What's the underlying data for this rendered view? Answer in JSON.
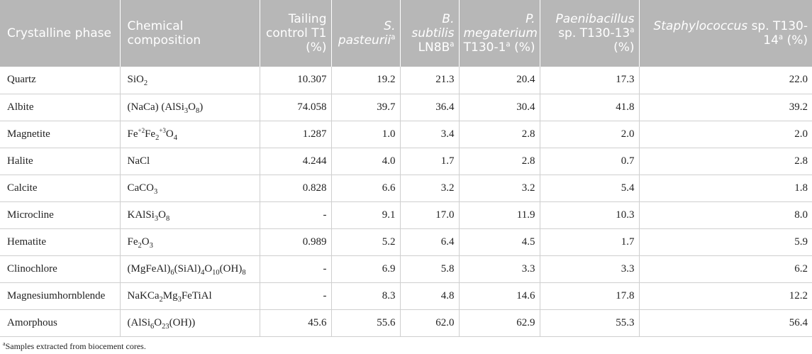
{
  "headers": {
    "h1": "Crystalline phase",
    "h2": "Chemical composition",
    "h3": "Tailing control T1 (%)",
    "h4_italic": "S. pasteurii",
    "h5_italic": "B. subtilis",
    "h5_rest": "LN8B",
    "h6_italic": "P. megaterium",
    "h6_rest": "T130-1",
    "h6_unit": " (%)",
    "h7_italic": "Paenibacillus",
    "h7_rest": "sp. T130-13",
    "h7_unit": " (%)",
    "h8_italic": "Staphylococcus",
    "h8_rest": "sp. T130-14",
    "h8_unit": " (%)",
    "sup_a": "a"
  },
  "rows": [
    {
      "phase": "Quartz",
      "formula": [
        [
          "SiO",
          ""
        ],
        [
          "2",
          "sub"
        ]
      ],
      "v": [
        "10.307",
        "19.2",
        "21.3",
        "20.4",
        "17.3",
        "22.0"
      ]
    },
    {
      "phase": "Albite",
      "formula": [
        [
          "(NaCa) (AlSi",
          ""
        ],
        [
          "3",
          "sub"
        ],
        [
          "O",
          ""
        ],
        [
          "8",
          "sub"
        ],
        [
          ")",
          ""
        ]
      ],
      "v": [
        "74.058",
        "39.7",
        "36.4",
        "30.4",
        "41.8",
        "39.2"
      ]
    },
    {
      "phase": "Magnetite",
      "formula": [
        [
          "Fe",
          ""
        ],
        [
          "+2",
          "sup"
        ],
        [
          "Fe",
          ""
        ],
        [
          "2",
          "sub"
        ],
        [
          "+3",
          "sup"
        ],
        [
          "O",
          ""
        ],
        [
          "4",
          "sub"
        ]
      ],
      "v": [
        "1.287",
        "1.0",
        "3.4",
        "2.8",
        "2.0",
        "2.0"
      ]
    },
    {
      "phase": "Halite",
      "formula": [
        [
          "NaCl",
          ""
        ]
      ],
      "v": [
        "4.244",
        "4.0",
        "1.7",
        "2.8",
        "0.7",
        "2.8"
      ]
    },
    {
      "phase": "Calcite",
      "formula": [
        [
          "CaCO",
          ""
        ],
        [
          "3",
          "sub"
        ]
      ],
      "v": [
        "0.828",
        "6.6",
        "3.2",
        "3.2",
        "5.4",
        "1.8"
      ]
    },
    {
      "phase": "Microcline",
      "formula": [
        [
          "KAlSi",
          ""
        ],
        [
          "3",
          "sub"
        ],
        [
          "O",
          ""
        ],
        [
          "8",
          "sub"
        ]
      ],
      "v": [
        "-",
        "9.1",
        "17.0",
        "11.9",
        "10.3",
        "8.0"
      ]
    },
    {
      "phase": "Hematite",
      "formula": [
        [
          "Fe",
          ""
        ],
        [
          "2",
          "sub"
        ],
        [
          "O",
          ""
        ],
        [
          "3",
          "sub"
        ]
      ],
      "v": [
        "0.989",
        "5.2",
        "6.4",
        "4.5",
        "1.7",
        "5.9"
      ]
    },
    {
      "phase": "Clinochlore",
      "formula": [
        [
          "(MgFeAl)",
          ""
        ],
        [
          "6",
          "sub"
        ],
        [
          "(SiAl)",
          ""
        ],
        [
          "4",
          "sub"
        ],
        [
          "O",
          ""
        ],
        [
          "10",
          "sub"
        ],
        [
          "(OH)",
          ""
        ],
        [
          "8",
          "sub"
        ]
      ],
      "v": [
        "-",
        "6.9",
        "5.8",
        "3.3",
        "3.3",
        "6.2"
      ]
    },
    {
      "phase": "Magnesiumhornblende",
      "formula": [
        [
          "NaKCa",
          ""
        ],
        [
          "2",
          "sub"
        ],
        [
          "Mg",
          ""
        ],
        [
          "3",
          "sub"
        ],
        [
          "FeTiAl",
          ""
        ]
      ],
      "v": [
        "-",
        "8.3",
        "4.8",
        "14.6",
        "17.8",
        "12.2"
      ]
    },
    {
      "phase": "Amorphous",
      "formula": [
        [
          "(AlSi",
          ""
        ],
        [
          "6",
          "sub"
        ],
        [
          "O",
          ""
        ],
        [
          "23",
          "sub"
        ],
        [
          "(OH))",
          ""
        ]
      ],
      "v": [
        "45.6",
        "55.6",
        "62.0",
        "62.9",
        "55.3",
        "56.4"
      ]
    }
  ],
  "footnote": {
    "marker": "a",
    "text": "Samples extracted from biocement cores."
  }
}
